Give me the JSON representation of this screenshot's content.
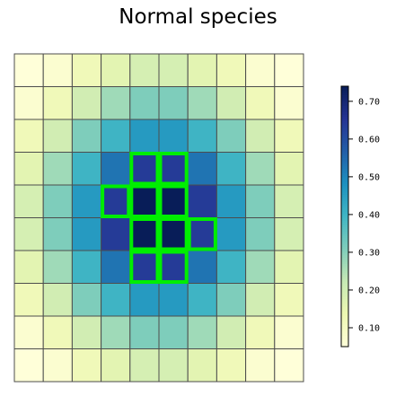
{
  "chart_data": {
    "type": "heatmap",
    "title": "Normal species",
    "rows": 10,
    "cols": 10,
    "values": [
      [
        0.05,
        0.07,
        0.12,
        0.16,
        0.19,
        0.19,
        0.16,
        0.12,
        0.07,
        0.05
      ],
      [
        0.07,
        0.12,
        0.2,
        0.27,
        0.31,
        0.31,
        0.27,
        0.2,
        0.12,
        0.07
      ],
      [
        0.12,
        0.2,
        0.31,
        0.4,
        0.46,
        0.46,
        0.4,
        0.31,
        0.2,
        0.12
      ],
      [
        0.16,
        0.27,
        0.4,
        0.53,
        0.64,
        0.64,
        0.53,
        0.4,
        0.27,
        0.16
      ],
      [
        0.19,
        0.31,
        0.46,
        0.64,
        0.74,
        0.74,
        0.64,
        0.46,
        0.31,
        0.19
      ],
      [
        0.19,
        0.31,
        0.46,
        0.64,
        0.74,
        0.74,
        0.64,
        0.46,
        0.31,
        0.19
      ],
      [
        0.16,
        0.27,
        0.4,
        0.53,
        0.64,
        0.64,
        0.53,
        0.4,
        0.27,
        0.16
      ],
      [
        0.12,
        0.2,
        0.31,
        0.4,
        0.46,
        0.46,
        0.4,
        0.31,
        0.2,
        0.12
      ],
      [
        0.07,
        0.12,
        0.2,
        0.27,
        0.31,
        0.31,
        0.27,
        0.2,
        0.12,
        0.07
      ],
      [
        0.05,
        0.07,
        0.12,
        0.16,
        0.19,
        0.19,
        0.16,
        0.12,
        0.07,
        0.05
      ]
    ],
    "highlighted_cells": [
      [
        3,
        4
      ],
      [
        3,
        5
      ],
      [
        4,
        3
      ],
      [
        4,
        4
      ],
      [
        4,
        5
      ],
      [
        5,
        4
      ],
      [
        5,
        5
      ],
      [
        5,
        6
      ],
      [
        6,
        4
      ],
      [
        6,
        5
      ]
    ],
    "highlight_color": "#00ee00",
    "grid_line_color": "#4d4d4d",
    "colormap": "YlGnBu",
    "colormap_stops": [
      "#ffffd9",
      "#edf8b1",
      "#c7e9b4",
      "#7fcdbb",
      "#41b6c4",
      "#1d91c0",
      "#225ea8",
      "#253494",
      "#081d58"
    ],
    "colorbar": {
      "min": 0.05,
      "max": 0.74,
      "ticks": [
        0.1,
        0.2,
        0.3,
        0.4,
        0.5,
        0.6,
        0.7
      ],
      "tick_labels": [
        "0.10",
        "0.20",
        "0.30",
        "0.40",
        "0.50",
        "0.60",
        "0.70"
      ]
    }
  }
}
